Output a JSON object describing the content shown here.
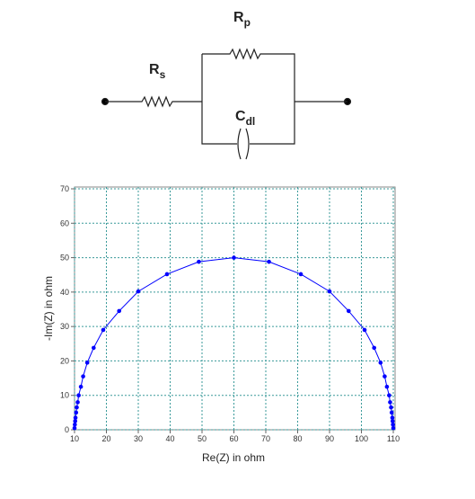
{
  "circuit": {
    "components": [
      {
        "symbol": "R",
        "subscript": "s"
      },
      {
        "symbol": "R",
        "subscript": "p"
      },
      {
        "symbol": "C",
        "subscript": "dl"
      }
    ]
  },
  "chart_data": {
    "type": "line",
    "xlabel": "Re(Z) in ohm",
    "ylabel": "-Im(Z) in ohm",
    "x": [
      10,
      10.1,
      10.2,
      10.3,
      10.5,
      10.7,
      11,
      11.3,
      12,
      12.7,
      14,
      16,
      19,
      24,
      30,
      39,
      49,
      60,
      71,
      81,
      90,
      96,
      101,
      104,
      106,
      107.3,
      108,
      108.7,
      109,
      109.3,
      109.5,
      109.7,
      109.8,
      109.9,
      110
    ],
    "series": [
      {
        "color": "#0000ff",
        "values": [
          0.5,
          1.5,
          2.5,
          3.5,
          5,
          6.5,
          8,
          10,
          12.5,
          15.5,
          19.5,
          23.8,
          29,
          34.5,
          40.2,
          45.2,
          48.8,
          50,
          48.8,
          45.2,
          40.2,
          34.5,
          29,
          23.8,
          19.5,
          15.5,
          12.5,
          10,
          8,
          6.5,
          5,
          3.5,
          2.5,
          1.5,
          0.5
        ]
      }
    ],
    "xlim": [
      10,
      110
    ],
    "xticks": [
      10,
      20,
      30,
      40,
      50,
      60,
      70,
      80,
      90,
      100,
      110
    ],
    "ylim": [
      0,
      70
    ],
    "yticks": [
      0,
      10,
      20,
      30,
      40,
      50,
      60,
      70
    ],
    "grid": true,
    "grid_color": "#3a9a9a"
  }
}
